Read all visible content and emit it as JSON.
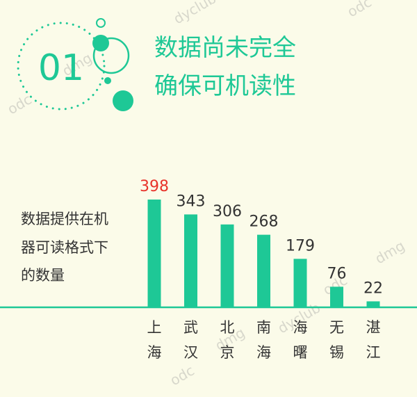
{
  "header": {
    "badge_number": "01",
    "title_line1": "数据尚未完全",
    "title_line2": "确保可机读性"
  },
  "side_label": [
    "数据提供在机",
    "器可读格式下",
    "的数量"
  ],
  "watermarks": [
    "odc",
    "dmg",
    "dyclub",
    "odc",
    "dyclub",
    "dmg",
    "odc",
    "dmg",
    "odc"
  ],
  "colors": {
    "background": "#fbfbe9",
    "accent": "#1ec896",
    "highlight_label": "#e8332a",
    "text": "#333333",
    "watermark": "#d8d8cc"
  },
  "chart_data": {
    "type": "bar",
    "categories": [
      "上海",
      "武汉",
      "北京",
      "南海",
      "海曙",
      "无锡",
      "湛江"
    ],
    "values": [
      398,
      343,
      306,
      268,
      179,
      76,
      22
    ],
    "highlight_index": 0,
    "ylim": [
      0,
      398
    ],
    "grid": false,
    "legend": "none"
  }
}
